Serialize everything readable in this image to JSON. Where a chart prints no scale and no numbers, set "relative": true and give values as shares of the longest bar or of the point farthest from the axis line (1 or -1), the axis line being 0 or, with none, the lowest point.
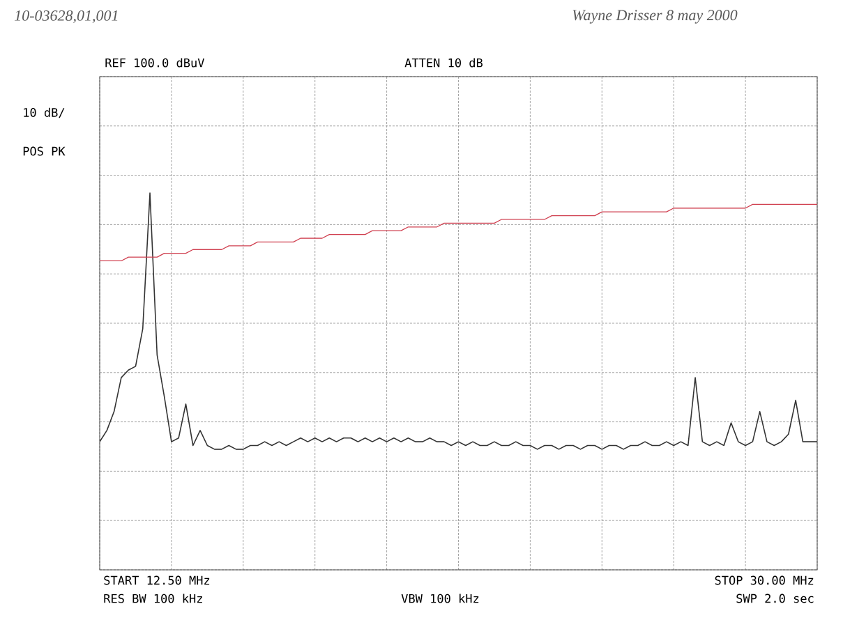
{
  "chart_data": {
    "type": "line",
    "relative": true,
    "grid": true,
    "marker": "none",
    "line_style": "solid",
    "categories": [
      null,
      null,
      null,
      null,
      null,
      null,
      null,
      null,
      null,
      null,
      null,
      null,
      null,
      null,
      null,
      null,
      null,
      null,
      null,
      null,
      null,
      null,
      null,
      null,
      null,
      null,
      null,
      null,
      null,
      null,
      null,
      null,
      null,
      null,
      null,
      null,
      null,
      null,
      null,
      null,
      null,
      null,
      null,
      null,
      null,
      null,
      null,
      null,
      null,
      null,
      null,
      null,
      null,
      null,
      null,
      null,
      null,
      null,
      null,
      null,
      null,
      null,
      null,
      null,
      null,
      null,
      null,
      null,
      null,
      null,
      null,
      null,
      null,
      null,
      null,
      null,
      null,
      null,
      null,
      null,
      null,
      null,
      null,
      null,
      null,
      null,
      null,
      null,
      null,
      null,
      null,
      null,
      null,
      null,
      null,
      null,
      null,
      null,
      null,
      null,
      null
    ],
    "series": [
      {
        "color": "#333333",
        "values": [
          0.34,
          0.37,
          0.42,
          0.51,
          0.53,
          0.54,
          0.64,
          1,
          0.57,
          0.46,
          0.34,
          0.35,
          0.44,
          0.33,
          0.37,
          0.33,
          0.32,
          0.32,
          0.33,
          0.32,
          0.32,
          0.33,
          0.33,
          0.34,
          0.33,
          0.34,
          0.33,
          0.34,
          0.35,
          0.34,
          0.35,
          0.34,
          0.35,
          0.34,
          0.35,
          0.35,
          0.34,
          0.35,
          0.34,
          0.35,
          0.34,
          0.35,
          0.34,
          0.35,
          0.34,
          0.34,
          0.35,
          0.34,
          0.34,
          0.33,
          0.34,
          0.33,
          0.34,
          0.33,
          0.33,
          0.34,
          0.33,
          0.33,
          0.34,
          0.33,
          0.33,
          0.32,
          0.33,
          0.33,
          0.32,
          0.33,
          0.33,
          0.32,
          0.33,
          0.33,
          0.32,
          0.33,
          0.33,
          0.32,
          0.33,
          0.33,
          0.34,
          0.33,
          0.33,
          0.34,
          0.33,
          0.34,
          0.33,
          0.51,
          0.34,
          0.33,
          0.34,
          0.33,
          0.39,
          0.34,
          0.33,
          0.34,
          0.42,
          0.34,
          0.33,
          0.34,
          0.36,
          0.45,
          0.34,
          0.34,
          0.34
        ]
      },
      {
        "color": "#d04050",
        "values": [
          0.82,
          0.82,
          0.82,
          0.82,
          0.83,
          0.83,
          0.83,
          0.83,
          0.83,
          0.84,
          0.84,
          0.84,
          0.84,
          0.85,
          0.85,
          0.85,
          0.85,
          0.85,
          0.86,
          0.86,
          0.86,
          0.86,
          0.87,
          0.87,
          0.87,
          0.87,
          0.87,
          0.87,
          0.88,
          0.88,
          0.88,
          0.88,
          0.89,
          0.89,
          0.89,
          0.89,
          0.89,
          0.89,
          0.9,
          0.9,
          0.9,
          0.9,
          0.9,
          0.91,
          0.91,
          0.91,
          0.91,
          0.91,
          0.92,
          0.92,
          0.92,
          0.92,
          0.92,
          0.92,
          0.92,
          0.92,
          0.93,
          0.93,
          0.93,
          0.93,
          0.93,
          0.93,
          0.93,
          0.94,
          0.94,
          0.94,
          0.94,
          0.94,
          0.94,
          0.94,
          0.95,
          0.95,
          0.95,
          0.95,
          0.95,
          0.95,
          0.95,
          0.95,
          0.95,
          0.95,
          0.96,
          0.96,
          0.96,
          0.96,
          0.96,
          0.96,
          0.96,
          0.96,
          0.96,
          0.96,
          0.96,
          0.97,
          0.97,
          0.97,
          0.97,
          0.97,
          0.97,
          0.97,
          0.97,
          0.97,
          0.97
        ]
      }
    ],
    "annotations": [
      "10-03628,01,001",
      "Wayne Drisser 8 may 2000",
      "REF 100.0 dBuV",
      "10 dB/",
      "POS PK",
      "ATTEN 10 dB",
      "START 12.50 MHz",
      "RES BW 100 kHz",
      "VBW 100 kHz",
      "STOP 30.00 MHz",
      "SWP 2.0 sec"
    ]
  }
}
